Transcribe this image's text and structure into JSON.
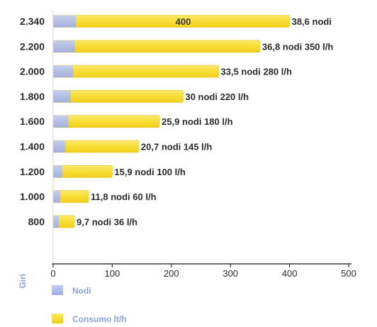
{
  "chart_data": {
    "type": "bar",
    "orientation": "horizontal",
    "stacked": "overlay",
    "ylabel": "Giri",
    "xlim": [
      0,
      500
    ],
    "x_ticks": [
      "0",
      "100",
      "200",
      "300",
      "400",
      "500"
    ],
    "categories": [
      "2.340",
      "2.200",
      "2.000",
      "1.800",
      "1.600",
      "1.400",
      "1.200",
      "1.000",
      "800"
    ],
    "series": [
      {
        "name": "Nodi",
        "color": "#a9b8ea",
        "values": [
          38.6,
          36.8,
          33.5,
          30,
          25.9,
          20.7,
          15.9,
          11.8,
          9.7
        ]
      },
      {
        "name": "Consumo lt/h",
        "color": "#f7de3a",
        "values": [
          400,
          350,
          280,
          220,
          180,
          145,
          100,
          60,
          36
        ]
      }
    ],
    "bar_labels": [
      "38,6 nodi",
      "36,8 nodi 350 l/h",
      "33,5 nodi 280 l/h",
      "30 nodi 220 l/h",
      "25,9 nodi 180 l/h",
      "20,7 nodi 145 l/h",
      "15,9 nodi 100 l/h",
      "11,8 nodi 60 l/h",
      "9,7 nodi 36 l/h"
    ],
    "inner_labels": [
      "400",
      "",
      "",
      "",
      "",
      "",
      "",
      "",
      ""
    ],
    "legend": {
      "position": "bottom-left",
      "entries": [
        "Nodi",
        "Consumo lt/h"
      ]
    }
  }
}
